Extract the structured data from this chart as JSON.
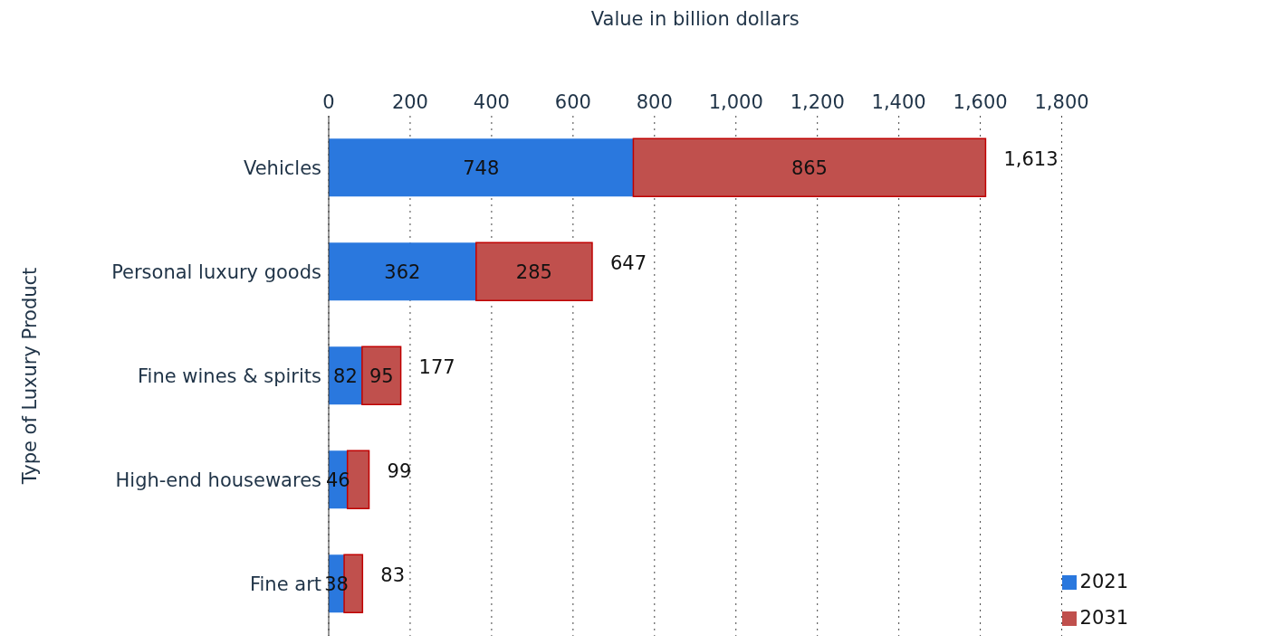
{
  "chart_data": {
    "type": "bar",
    "orientation": "horizontal",
    "stacked": true,
    "xlabel": "Value in billion dollars",
    "ylabel": "Type of  Luxury Product",
    "categories": [
      "Vehicles",
      "Personal luxury goods",
      "Fine wines & spirits",
      "High-end housewares",
      "Fine art"
    ],
    "series": [
      {
        "name": "2021",
        "color": "#2a78de",
        "values": [
          748,
          362,
          82,
          46,
          38
        ],
        "value_labels": [
          "748",
          "362",
          "82",
          "46",
          "38"
        ]
      },
      {
        "name": "2031",
        "color": "#c0504d",
        "values": [
          865,
          285,
          95,
          53,
          45
        ],
        "value_labels": [
          "865",
          "285",
          "95",
          null,
          null
        ]
      }
    ],
    "totals": [
      "1,613",
      "647",
      "177",
      "99",
      "83"
    ],
    "xlim": [
      0,
      1800
    ],
    "xticks": [
      0,
      200,
      400,
      600,
      800,
      {
        "value": 1000,
        "label": "1,000"
      },
      {
        "value": 1200,
        "label": "1,200"
      },
      {
        "value": 1400,
        "label": "1,400"
      },
      {
        "value": 1600,
        "label": "1,600"
      },
      {
        "value": 1800,
        "label": "1,800"
      }
    ],
    "grid": "x",
    "legend": "bottom right"
  }
}
